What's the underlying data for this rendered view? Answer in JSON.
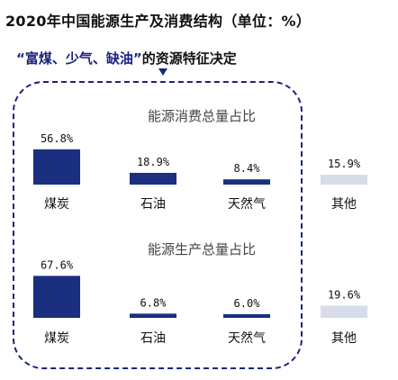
{
  "header": {
    "title": "2020年中国能源生产及消费结构（单位：%）",
    "subtitle_quote": "“富煤、少气、缺油”",
    "subtitle_rest": "的资源特征决定"
  },
  "colors": {
    "main": "#1a2f80",
    "other": "#d6dce8",
    "frame": "#1a237e"
  },
  "chart_data": [
    {
      "type": "bar",
      "title": "能源消费总量占比",
      "categories": [
        "煤炭",
        "石油",
        "天然气",
        "其他"
      ],
      "values": [
        56.8,
        18.9,
        8.4,
        15.9
      ],
      "value_labels": [
        "56.8%",
        "18.9%",
        "8.4%",
        "15.9%"
      ],
      "unit": "%"
    },
    {
      "type": "bar",
      "title": "能源生产总量占比",
      "categories": [
        "煤炭",
        "石油",
        "天然气",
        "其他"
      ],
      "values": [
        67.6,
        6.8,
        6.0,
        19.6
      ],
      "value_labels": [
        "67.6%",
        "6.8%",
        "6.0%",
        "19.6%"
      ],
      "unit": "%"
    }
  ]
}
